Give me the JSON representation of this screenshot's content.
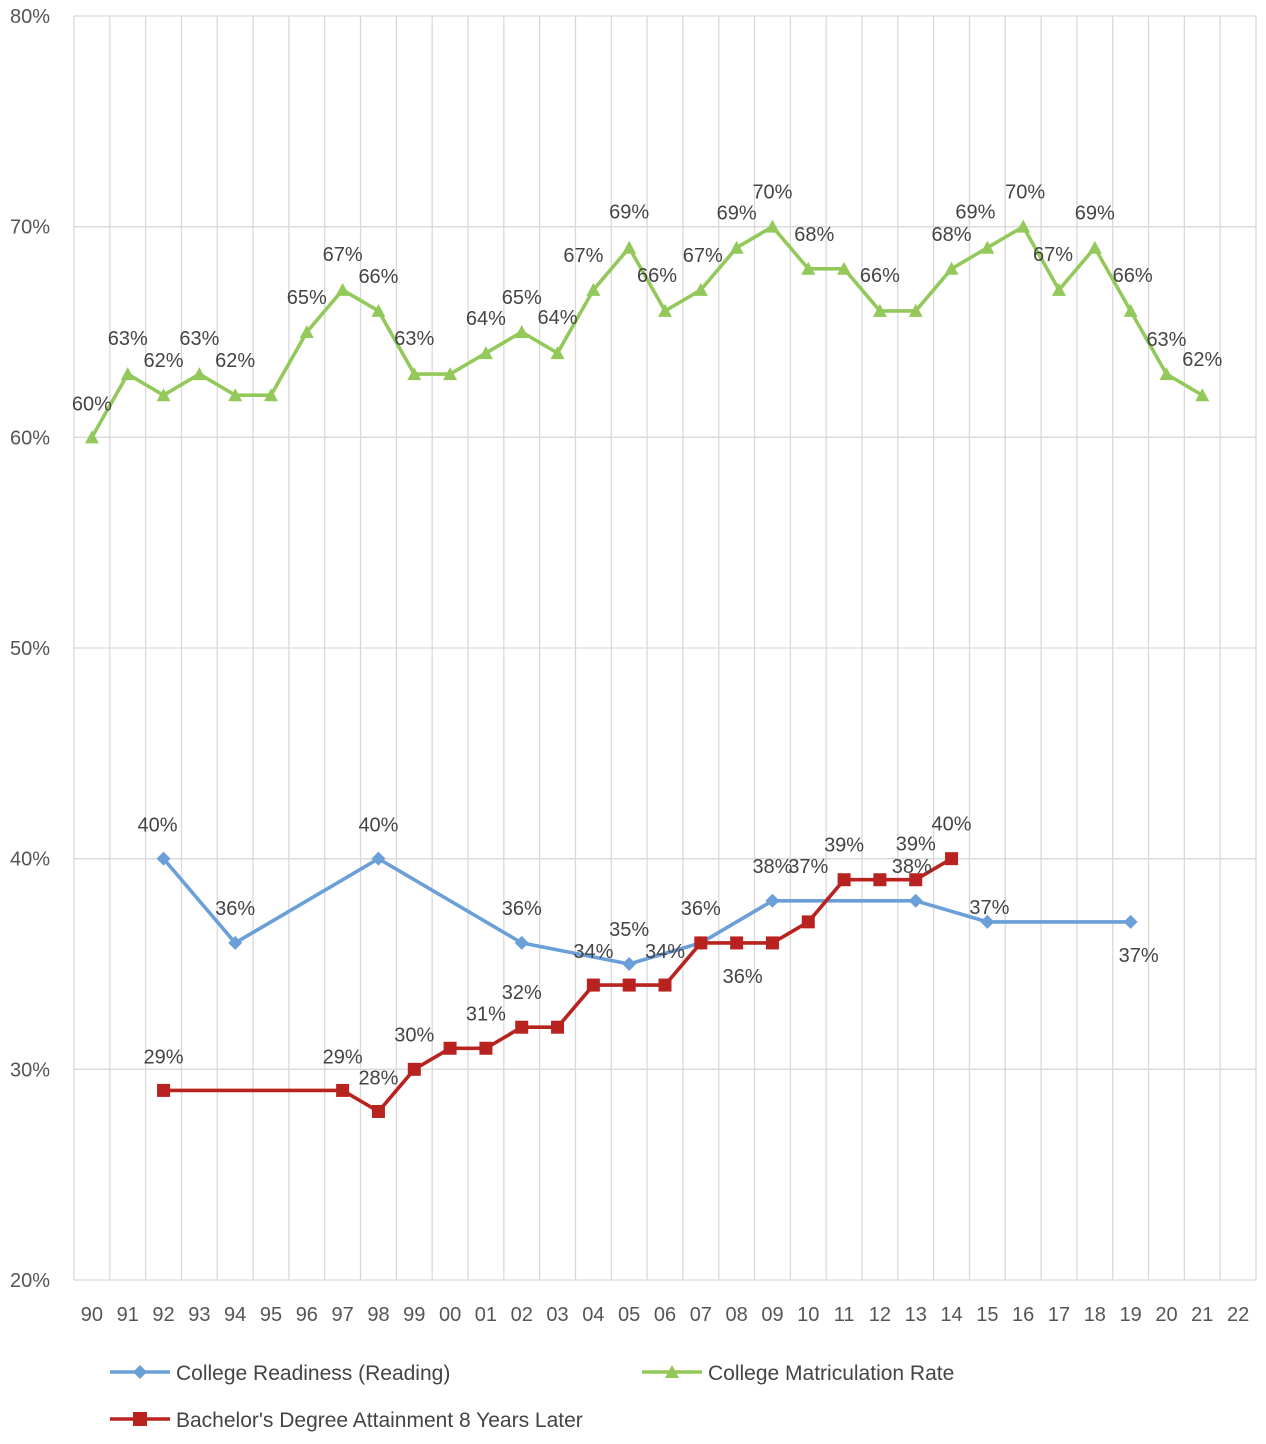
{
  "chart_data": {
    "type": "line",
    "categories": [
      "90",
      "91",
      "92",
      "93",
      "94",
      "95",
      "96",
      "97",
      "98",
      "99",
      "00",
      "01",
      "02",
      "03",
      "04",
      "05",
      "06",
      "07",
      "08",
      "09",
      "10",
      "11",
      "12",
      "13",
      "14",
      "15",
      "16",
      "17",
      "18",
      "19",
      "20",
      "21",
      "22"
    ],
    "ylim": [
      20,
      80
    ],
    "y_ticks": [
      "20%",
      "30%",
      "40%",
      "50%",
      "60%",
      "70%",
      "80%"
    ],
    "grid": true,
    "legend_position": "bottom",
    "series": [
      {
        "name": "College Readiness (Reading)",
        "color": "#6a9fd8",
        "marker": "diamond",
        "points": [
          {
            "x": "92",
            "y": 40,
            "label": "40%"
          },
          {
            "x": "94",
            "y": 36,
            "label": "36%"
          },
          {
            "x": "98",
            "y": 40,
            "label": "40%"
          },
          {
            "x": "02",
            "y": 36,
            "label": "36%"
          },
          {
            "x": "05",
            "y": 35,
            "label": "35%"
          },
          {
            "x": "07",
            "y": 36,
            "label": "36%"
          },
          {
            "x": "09",
            "y": 38,
            "label": "38%"
          },
          {
            "x": "13",
            "y": 38,
            "label": "38%"
          },
          {
            "x": "15",
            "y": 37,
            "label": "37%"
          },
          {
            "x": "19",
            "y": 37,
            "label": "37%"
          }
        ]
      },
      {
        "name": "College Matriculation Rate",
        "color": "#93c95a",
        "marker": "triangle",
        "points": [
          {
            "x": "90",
            "y": 60,
            "label": "60%"
          },
          {
            "x": "91",
            "y": 63,
            "label": "63%"
          },
          {
            "x": "92",
            "y": 62,
            "label": "62%"
          },
          {
            "x": "93",
            "y": 63,
            "label": "63%"
          },
          {
            "x": "94",
            "y": 62,
            "label": "62%"
          },
          {
            "x": "95",
            "y": 62,
            "label": ""
          },
          {
            "x": "96",
            "y": 65,
            "label": "65%"
          },
          {
            "x": "97",
            "y": 67,
            "label": "67%"
          },
          {
            "x": "98",
            "y": 66,
            "label": "66%"
          },
          {
            "x": "99",
            "y": 63,
            "label": "63%"
          },
          {
            "x": "00",
            "y": 63,
            "label": ""
          },
          {
            "x": "01",
            "y": 64,
            "label": "64%"
          },
          {
            "x": "02",
            "y": 65,
            "label": "65%"
          },
          {
            "x": "03",
            "y": 64,
            "label": "64%"
          },
          {
            "x": "04",
            "y": 67,
            "label": "67%"
          },
          {
            "x": "05",
            "y": 69,
            "label": "69%"
          },
          {
            "x": "06",
            "y": 66,
            "label": "66%"
          },
          {
            "x": "07",
            "y": 67,
            "label": "67%"
          },
          {
            "x": "08",
            "y": 69,
            "label": "69%"
          },
          {
            "x": "09",
            "y": 70,
            "label": "70%"
          },
          {
            "x": "10",
            "y": 68,
            "label": "68%"
          },
          {
            "x": "11",
            "y": 68,
            "label": ""
          },
          {
            "x": "12",
            "y": 66,
            "label": "66%"
          },
          {
            "x": "13",
            "y": 66,
            "label": ""
          },
          {
            "x": "14",
            "y": 68,
            "label": "68%"
          },
          {
            "x": "15",
            "y": 69,
            "label": "69%"
          },
          {
            "x": "16",
            "y": 70,
            "label": "70%"
          },
          {
            "x": "17",
            "y": 67,
            "label": "67%"
          },
          {
            "x": "18",
            "y": 69,
            "label": "69%"
          },
          {
            "x": "19",
            "y": 66,
            "label": "66%"
          },
          {
            "x": "20",
            "y": 63,
            "label": "63%"
          },
          {
            "x": "21",
            "y": 62,
            "label": "62%"
          }
        ]
      },
      {
        "name": "Bachelor's Degree Attainment 8 Years Later",
        "color": "#b8231f",
        "marker": "square",
        "points": [
          {
            "x": "92",
            "y": 29,
            "label": "29%"
          },
          {
            "x": "97",
            "y": 29,
            "label": "29%"
          },
          {
            "x": "98",
            "y": 28,
            "label": "28%"
          },
          {
            "x": "99",
            "y": 30,
            "label": "30%"
          },
          {
            "x": "00",
            "y": 31,
            "label": ""
          },
          {
            "x": "01",
            "y": 31,
            "label": "31%"
          },
          {
            "x": "02",
            "y": 32,
            "label": "32%"
          },
          {
            "x": "03",
            "y": 32,
            "label": ""
          },
          {
            "x": "04",
            "y": 34,
            "label": "34%"
          },
          {
            "x": "05",
            "y": 34,
            "label": ""
          },
          {
            "x": "06",
            "y": 34,
            "label": "34%"
          },
          {
            "x": "07",
            "y": 36,
            "label": ""
          },
          {
            "x": "08",
            "y": 36,
            "label": "36%"
          },
          {
            "x": "09",
            "y": 36,
            "label": ""
          },
          {
            "x": "10",
            "y": 37,
            "label": "37%"
          },
          {
            "x": "11",
            "y": 39,
            "label": "39%"
          },
          {
            "x": "12",
            "y": 39,
            "label": ""
          },
          {
            "x": "13",
            "y": 39,
            "label": "39%"
          },
          {
            "x": "14",
            "y": 40,
            "label": "40%"
          }
        ]
      }
    ]
  }
}
